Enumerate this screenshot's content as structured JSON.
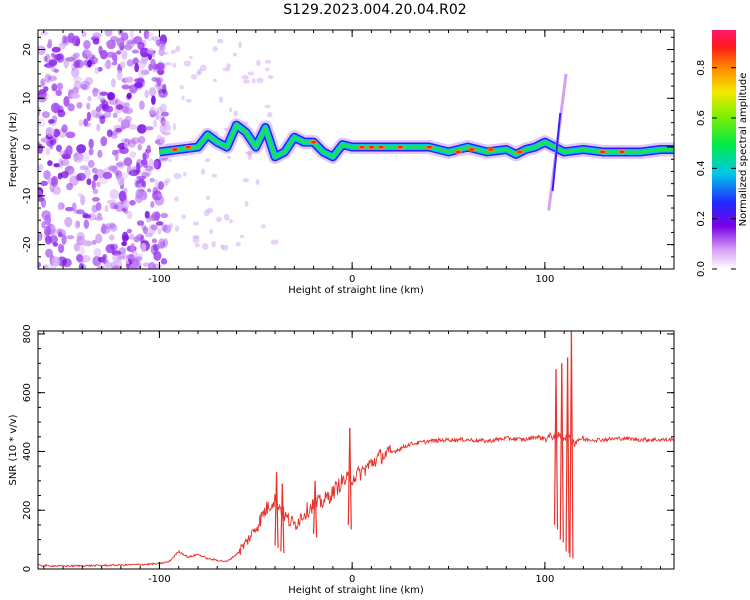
{
  "page_title": "S129.2023.004.20.04.R02",
  "chart_data": [
    {
      "type": "heatmap",
      "title": "S129.2023.004.20.04.R02",
      "xlabel": "Height of straight line (km)",
      "ylabel": "Frequency (Hz)",
      "xlim": [
        -163,
        167
      ],
      "ylim": [
        -25,
        24
      ],
      "xticks": [
        -100,
        0,
        100
      ],
      "xtick_labels": [
        "-100",
        "0",
        "100"
      ],
      "yticks": [
        -20,
        -10,
        0,
        10,
        20
      ],
      "ytick_labels": [
        "-20",
        "-10",
        "0",
        "10",
        "20"
      ],
      "colorbar": {
        "label": "Normalized spectral amplitude",
        "range": [
          0,
          0.95
        ],
        "ticks": [
          0.0,
          0.2,
          0.4,
          0.6,
          0.8
        ],
        "tick_labels": [
          "0.0",
          "0.2",
          "0.4",
          "0.6",
          "0.8"
        ]
      },
      "ridge_height_km": [
        -100,
        -90,
        -80,
        -75,
        -70,
        -65,
        -60,
        -55,
        -50,
        -45,
        -40,
        -35,
        -30,
        -25,
        -20,
        -15,
        -10,
        -5,
        0,
        10,
        20,
        30,
        40,
        50,
        60,
        70,
        80,
        85,
        90,
        95,
        100,
        105,
        110,
        120,
        130,
        140,
        150,
        160,
        167
      ],
      "ridge_freq_hz": [
        -1,
        -0.5,
        0,
        2.5,
        1,
        0,
        4.5,
        3,
        0,
        4,
        -2,
        -1,
        2,
        1,
        1,
        -1,
        -2,
        0.5,
        0,
        0,
        0,
        0,
        0,
        -1,
        0,
        -1,
        -0.5,
        -1.5,
        -0.5,
        0,
        1,
        0,
        -1,
        -0.5,
        -1,
        -1,
        -1,
        -0.5,
        -0.5
      ],
      "noise_region_km": [
        -163,
        -100
      ]
    },
    {
      "type": "line",
      "xlabel": "Height of straight line (km)",
      "ylabel": "SNR (10 * v/v)",
      "xlim": [
        -163,
        167
      ],
      "ylim": [
        0,
        810
      ],
      "xticks": [
        -100,
        0,
        100
      ],
      "xtick_labels": [
        "-100",
        "0",
        "100"
      ],
      "yticks": [
        0,
        200,
        400,
        600,
        800
      ],
      "ytick_labels": [
        "0",
        "200",
        "400",
        "600",
        "800"
      ],
      "series": [
        {
          "name": "SNR",
          "color": "#e8322c",
          "x": [
            -163,
            -150,
            -130,
            -110,
            -100,
            -95,
            -90,
            -85,
            -80,
            -75,
            -70,
            -65,
            -60,
            -55,
            -50,
            -45,
            -40,
            -35,
            -30,
            -25,
            -20,
            -15,
            -10,
            -5,
            0,
            5,
            10,
            15,
            20,
            25,
            30,
            40,
            50,
            60,
            70,
            80,
            90,
            95,
            100,
            105,
            110,
            113,
            115,
            118,
            120,
            130,
            140,
            150,
            160,
            167
          ],
          "y": [
            12,
            10,
            12,
            15,
            18,
            25,
            60,
            40,
            50,
            35,
            30,
            25,
            50,
            90,
            140,
            200,
            240,
            180,
            150,
            190,
            220,
            230,
            260,
            300,
            310,
            330,
            360,
            385,
            395,
            410,
            425,
            435,
            440,
            440,
            435,
            445,
            440,
            450,
            445,
            455,
            450,
            440,
            430,
            445,
            440,
            440,
            445,
            440,
            440,
            440
          ]
        }
      ],
      "spikes": [
        {
          "x": -40,
          "low": 80,
          "high": 330
        },
        {
          "x": -37,
          "low": 60,
          "high": 290
        },
        {
          "x": -20,
          "low": 120,
          "high": 300
        },
        {
          "x": -2,
          "low": 150,
          "high": 480
        },
        {
          "x": 105,
          "low": 150,
          "high": 680
        },
        {
          "x": 108,
          "low": 100,
          "high": 700
        },
        {
          "x": 111,
          "low": 60,
          "high": 720
        },
        {
          "x": 113,
          "low": 40,
          "high": 810
        }
      ]
    }
  ]
}
